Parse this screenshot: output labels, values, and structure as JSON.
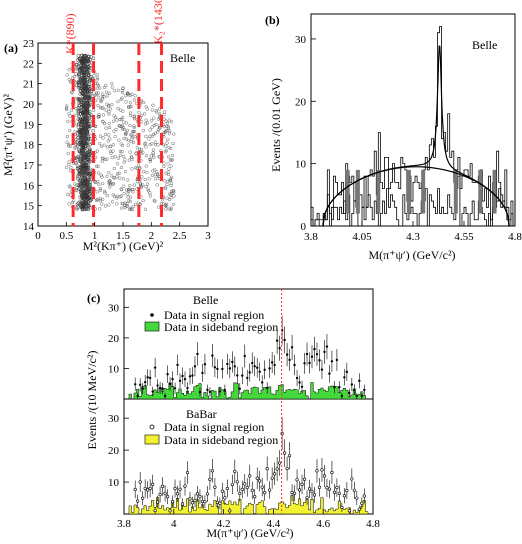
{
  "panels": [
    {
      "id": "a",
      "panel_label": "(a)",
      "experiment": "Belle",
      "type": "scatter",
      "xlabel": "M²(Kπ⁺) (GeV)²",
      "ylabel": "M²(π⁺ψ′) (GeV)²",
      "xlim": [
        0,
        3
      ],
      "ylim": [
        14,
        23
      ],
      "xticks": [
        "0",
        "0.5",
        "1",
        "1.5",
        "2",
        "2.5",
        "3"
      ],
      "yticks": [
        "14",
        "15",
        "16",
        "17",
        "18",
        "19",
        "20",
        "21",
        "22",
        "23"
      ],
      "resonance_labels": [
        "K*(890)",
        "K₂*(1430)"
      ],
      "veto_band_edges": [
        0.62,
        0.98,
        1.78,
        2.18
      ],
      "line_color": "#ff2a2a"
    },
    {
      "id": "b",
      "panel_label": "(b)",
      "experiment": "Belle",
      "type": "histogram",
      "xlabel": "M(π⁺ψ′) (GeV/c²)",
      "ylabel": "Events /(0.01 GeV)",
      "xlim": [
        3.8,
        4.8
      ],
      "ylim": [
        0,
        34
      ],
      "xticks": [
        "3.8",
        "4.05",
        "4.3",
        "4.55",
        "4.8"
      ],
      "yticks": [
        "0",
        "10",
        "20",
        "30"
      ],
      "peak_mass": 4.43
    },
    {
      "id": "c",
      "panel_label": "(c)",
      "type": "histogram",
      "xlabel": "M(π⁺ψ′) (GeV/c²)",
      "ylabel": "Events /(10 MeV/c²)",
      "xlim": [
        3.8,
        4.8
      ],
      "xticks": [
        "3.8",
        "4",
        "4.2",
        "4.4",
        "4.6",
        "4.8"
      ],
      "top": {
        "experiment": "Belle",
        "yticks": [
          "10",
          "20",
          "30"
        ],
        "legend_signal": "Data in signal region",
        "legend_sideband": "Data in sideband region",
        "sideband_color": "#44d93a"
      },
      "bottom": {
        "experiment": "BaBar",
        "yticks": [
          "10",
          "20",
          "30"
        ],
        "legend_signal": "Data in signal region",
        "legend_sideband": "Data in sideband region",
        "sideband_color": "#f2f230"
      },
      "marker_line_x": 4.433,
      "marker_line_color": "#ff2a2a"
    }
  ],
  "chart_data": [
    {
      "type": "scatter",
      "title": "",
      "xlabel": "M²(Kπ⁺) (GeV)²",
      "ylabel": "M²(π⁺ψ′) (GeV)²",
      "xlim": [
        0,
        3
      ],
      "ylim": [
        14,
        23
      ],
      "note_values": "dense band at M²(Kπ⁺)≈0.8, sparser points 0.5–2.4"
    },
    {
      "type": "bar",
      "xlabel": "M(π⁺ψ′) (GeV/c²)",
      "ylabel": "Events /(0.01 GeV)",
      "xlim": [
        3.8,
        4.8
      ],
      "ylim": [
        0,
        34
      ],
      "peak": {
        "x": 4.43,
        "y": 30
      }
    },
    {
      "type": "bar",
      "xlabel": "M(π⁺ψ′) (GeV/c²)",
      "ylabel": "Events /(10 MeV/c²)",
      "xlim": [
        3.8,
        4.8
      ],
      "series": [
        {
          "name": "Belle"
        },
        {
          "name": "BaBar"
        }
      ]
    }
  ]
}
